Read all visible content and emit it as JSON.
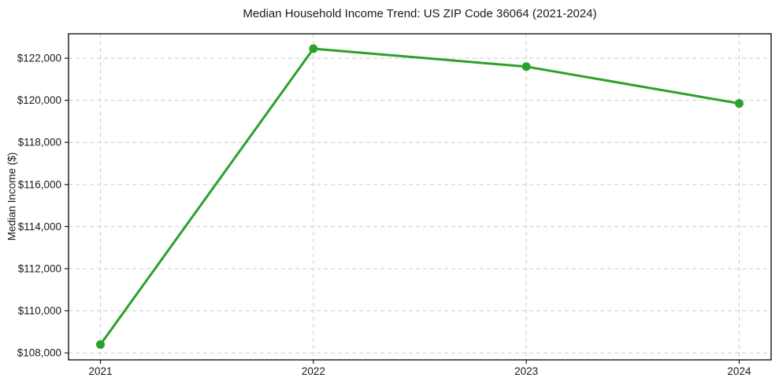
{
  "chart_data": {
    "type": "line",
    "title": "Median Household Income Trend: US ZIP Code 36064 (2021-2024)",
    "xlabel": "",
    "ylabel": "Median Income ($)",
    "x": [
      2021,
      2022,
      2023,
      2024
    ],
    "series": [
      {
        "name": "Median Household Income",
        "values": [
          108400,
          122450,
          121600,
          119850
        ]
      }
    ],
    "xtick_labels": [
      "2021",
      "2022",
      "2023",
      "2024"
    ],
    "yticks": [
      108000,
      110000,
      112000,
      114000,
      116000,
      118000,
      120000,
      122000
    ],
    "ytick_labels": [
      "$108,000",
      "$110,000",
      "$112,000",
      "$114,000",
      "$116,000",
      "$118,000",
      "$120,000",
      "$122,000"
    ],
    "xlim": [
      2020.85,
      2024.15
    ],
    "ylim": [
      107670,
      123160
    ],
    "grid": true,
    "grid_style": "dashed",
    "legend": false,
    "colors": {
      "line": "#2ca02c",
      "marker": "#2ca02c",
      "grid": "#cccccc",
      "spine": "#000000",
      "tick": "#1a1a1a",
      "text": "#1a1a1a",
      "background": "#ffffff"
    }
  }
}
